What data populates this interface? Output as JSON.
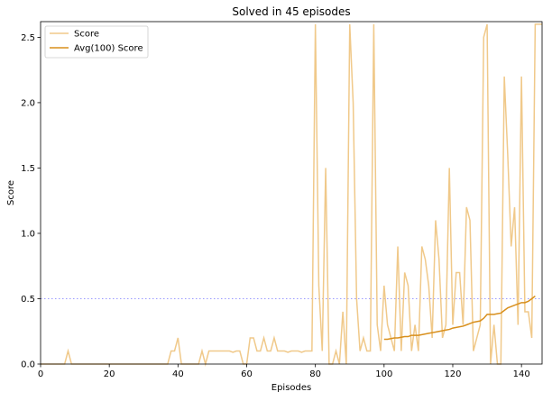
{
  "chart_data": {
    "type": "line",
    "title": "Solved in 45 episodes",
    "xlabel": "Episodes",
    "ylabel": "Score",
    "xlim": [
      0,
      146
    ],
    "ylim": [
      0,
      2.62
    ],
    "x_ticks": [
      0,
      20,
      40,
      60,
      80,
      100,
      120,
      140
    ],
    "y_ticks": [
      0.0,
      0.5,
      1.0,
      1.5,
      2.0,
      2.5
    ],
    "x_tick_labels": [
      "0",
      "20",
      "40",
      "60",
      "80",
      "100",
      "120",
      "140"
    ],
    "y_tick_labels": [
      "0.0",
      "0.5",
      "1.0",
      "1.5",
      "2.0",
      "2.5"
    ],
    "grid": false,
    "legend_position": "upper left",
    "reference_line": {
      "y": 0.5,
      "style": "dotted",
      "color": "#9a9aff"
    },
    "series": [
      {
        "name": "Score",
        "color": "#f0c98a",
        "x_start": 0,
        "values": [
          0,
          0,
          0,
          0,
          0,
          0,
          0,
          0,
          0.1,
          0,
          0,
          0,
          0,
          0,
          0,
          0,
          0,
          0,
          0,
          0,
          0,
          0,
          0,
          0,
          0,
          0,
          0,
          0,
          0,
          0,
          0,
          0,
          0,
          0,
          0,
          0,
          0,
          0,
          0.1,
          0.1,
          0.2,
          0,
          0,
          0,
          0,
          0,
          0,
          0.1,
          0,
          0.1,
          0.1,
          0.1,
          0.1,
          0.1,
          0.1,
          0.1,
          0.09,
          0.1,
          0.1,
          0.0,
          0.0,
          0.2,
          0.2,
          0.1,
          0.1,
          0.2,
          0.1,
          0.1,
          0.2,
          0.1,
          0.1,
          0.1,
          0.09,
          0.1,
          0.1,
          0.1,
          0.09,
          0.1,
          0.1,
          0.1,
          2.6,
          0.6,
          0.1,
          1.5,
          0,
          0,
          0.1,
          0,
          0.4,
          0,
          2.6,
          2.0,
          0.5,
          0.1,
          0.2,
          0.1,
          0.1,
          2.6,
          0.3,
          0.1,
          0.6,
          0.3,
          0.2,
          0.1,
          0.9,
          0.1,
          0.7,
          0.6,
          0.1,
          0.3,
          0.1,
          0.9,
          0.8,
          0.6,
          0.2,
          1.1,
          0.8,
          0.2,
          0.3,
          1.5,
          0.3,
          0.7,
          0.7,
          0.3,
          1.2,
          1.1,
          0.1,
          0.2,
          0.3,
          2.5,
          2.6,
          0.0,
          0.3,
          0.0,
          0.0,
          2.2,
          1.6,
          0.9,
          1.2,
          0.3,
          2.2,
          0.4,
          0.4,
          0.2,
          2.6,
          2.6,
          2.6
        ]
      },
      {
        "name": "Avg(100) Score",
        "color": "#d88f1c",
        "x_start": 100,
        "values": [
          0.19,
          0.19,
          0.195,
          0.2,
          0.2,
          0.205,
          0.21,
          0.21,
          0.22,
          0.22,
          0.22,
          0.225,
          0.23,
          0.235,
          0.24,
          0.245,
          0.25,
          0.255,
          0.26,
          0.265,
          0.275,
          0.28,
          0.285,
          0.29,
          0.3,
          0.31,
          0.32,
          0.325,
          0.33,
          0.35,
          0.38,
          0.38,
          0.38,
          0.385,
          0.39,
          0.41,
          0.43,
          0.44,
          0.45,
          0.46,
          0.47,
          0.47,
          0.48,
          0.5,
          0.52
        ]
      }
    ]
  }
}
